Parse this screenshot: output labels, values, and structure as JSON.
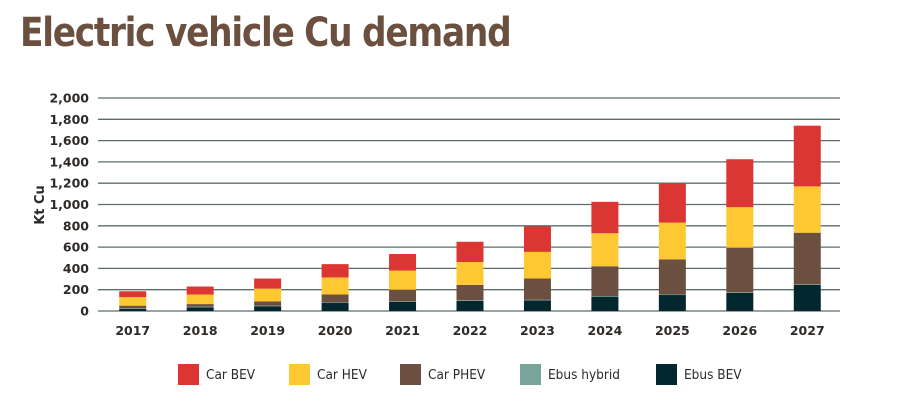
{
  "title": "Electric vehicle Cu demand",
  "chart_data": {
    "type": "bar",
    "stacked": true,
    "title": "Electric vehicle Cu demand",
    "xlabel": "",
    "ylabel": "Kt Cu",
    "ylim": [
      0,
      2000
    ],
    "yticks": [
      0,
      200,
      400,
      600,
      800,
      1000,
      1200,
      1400,
      1600,
      1800,
      2000
    ],
    "ytick_labels": [
      "0",
      "200",
      "400",
      "600",
      "800",
      "1,000",
      "1,200",
      "1,400",
      "1,600",
      "1,800",
      "2,000"
    ],
    "grid": true,
    "legend_position": "bottom",
    "categories": [
      "2017",
      "2018",
      "2019",
      "2020",
      "2021",
      "2022",
      "2023",
      "2024",
      "2025",
      "2026",
      "2027"
    ],
    "series": [
      {
        "name": "Ebus BEV",
        "color": "#02272f",
        "values": [
          20,
          35,
          45,
          75,
          85,
          95,
          100,
          135,
          150,
          170,
          245
        ]
      },
      {
        "name": "Ebus hybrid",
        "color": "#78a49a",
        "values": [
          5,
          5,
          5,
          5,
          5,
          5,
          5,
          5,
          5,
          5,
          5
        ]
      },
      {
        "name": "Car PHEV",
        "color": "#6b5042",
        "values": [
          25,
          25,
          40,
          75,
          110,
          145,
          200,
          280,
          330,
          420,
          485
        ]
      },
      {
        "name": "Car HEV",
        "color": "#fec832",
        "values": [
          80,
          90,
          120,
          160,
          180,
          215,
          250,
          310,
          345,
          380,
          435
        ]
      },
      {
        "name": "Car BEV",
        "color": "#db3633",
        "values": [
          55,
          75,
          95,
          125,
          155,
          190,
          240,
          295,
          370,
          450,
          570
        ]
      }
    ]
  },
  "legend": [
    {
      "label": "Car BEV",
      "color": "#db3633"
    },
    {
      "label": "Car HEV",
      "color": "#fec832"
    },
    {
      "label": "Car PHEV",
      "color": "#6b5042"
    },
    {
      "label": "Ebus hybrid",
      "color": "#78a49a"
    },
    {
      "label": "Ebus BEV",
      "color": "#02272f"
    }
  ]
}
